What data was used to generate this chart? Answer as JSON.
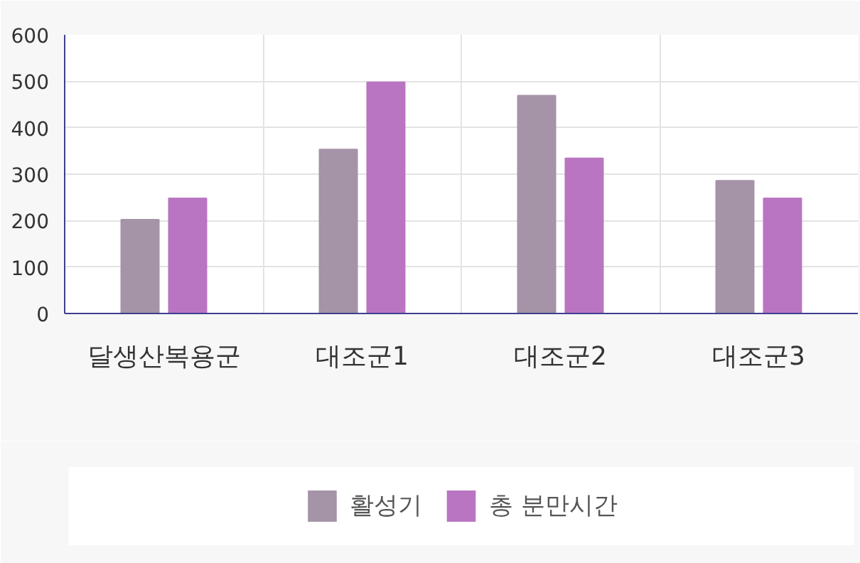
{
  "chart_data": {
    "type": "bar",
    "categories": [
      "달생산복용군",
      "대조군1",
      "대조군2",
      "대조군3"
    ],
    "series": [
      {
        "name": "활성기",
        "color": "#a593a7",
        "values": [
          202,
          353,
          469,
          286
        ]
      },
      {
        "name": "총 분만시간",
        "color": "#b975c1",
        "values": [
          248,
          498,
          334,
          248
        ]
      }
    ],
    "ylim": [
      0,
      600
    ],
    "yticks": [
      0,
      100,
      200,
      300,
      400,
      500,
      600
    ],
    "grid": true,
    "legend": "bottom"
  }
}
